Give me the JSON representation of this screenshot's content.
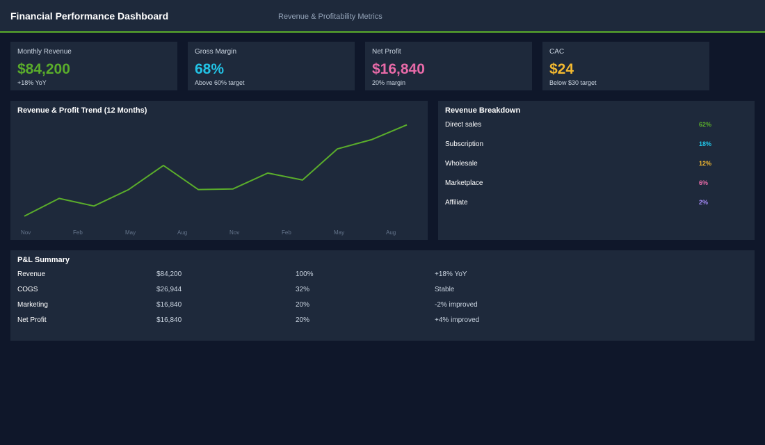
{
  "header": {
    "title": "Financial Performance Dashboard",
    "subtitle": "Revenue & Profitability Metrics",
    "accent": "#5aad2b"
  },
  "kpis": [
    {
      "label": "Monthly Revenue",
      "value": "$84,200",
      "note": "+18% YoY",
      "color": "#5aad2b"
    },
    {
      "label": "Gross Margin",
      "value": "68%",
      "note": "Above 60% target",
      "color": "#22c3e6"
    },
    {
      "label": "Net Profit",
      "value": "$16,840",
      "note": "20% margin",
      "color": "#e86aa8"
    },
    {
      "label": "CAC",
      "value": "$24",
      "note": "Below $30 target",
      "color": "#f2b830"
    }
  ],
  "trend": {
    "title": "Revenue & Profit Trend (12 Months)"
  },
  "chart_data": {
    "type": "line",
    "title": "Revenue & Profit Trend (12 Months)",
    "x_ticks": [
      "Nov",
      "Feb",
      "May",
      "Aug",
      "Nov",
      "Feb",
      "May",
      "Aug"
    ],
    "series": [
      {
        "color": "#5aad2b",
        "values": [
          10,
          38,
          26,
          52,
          90,
          52,
          53,
          78,
          67,
          116,
          131,
          154
        ]
      }
    ],
    "ylim": [
      0,
      170
    ],
    "grid": false
  },
  "breakdown": {
    "title": "Revenue Breakdown",
    "items": [
      {
        "name": "Direct sales",
        "pct": "62%",
        "color": "#5aad2b"
      },
      {
        "name": "Subscription",
        "pct": "18%",
        "color": "#22c3e6"
      },
      {
        "name": "Wholesale",
        "pct": "12%",
        "color": "#f2b830"
      },
      {
        "name": "Marketplace",
        "pct": "6%",
        "color": "#e86aa8"
      },
      {
        "name": "Affiliate",
        "pct": "2%",
        "color": "#a78bfa"
      }
    ]
  },
  "pl": {
    "title": "P&L Summary",
    "rows": [
      [
        "Revenue",
        "$84,200",
        "100%",
        "+18% YoY"
      ],
      [
        "COGS",
        "$26,944",
        "32%",
        "Stable"
      ],
      [
        "Marketing",
        "$16,840",
        "20%",
        "-2% improved"
      ],
      [
        "Net Profit",
        "$16,840",
        "20%",
        "+4% improved"
      ]
    ]
  }
}
